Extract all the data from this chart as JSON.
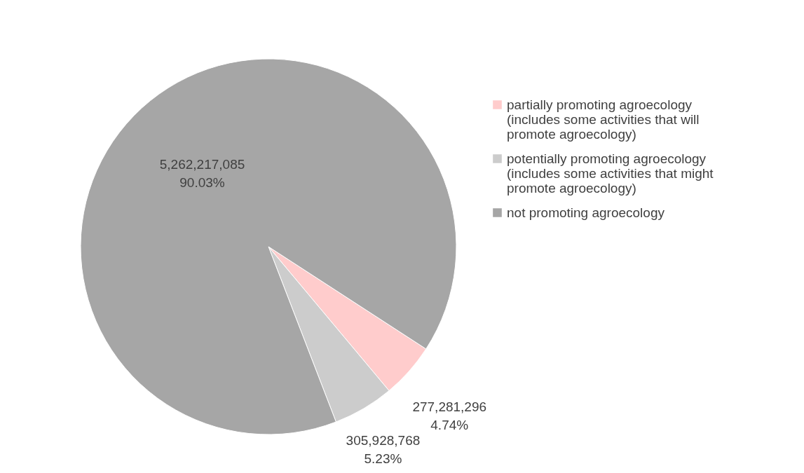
{
  "chart_data": {
    "type": "pie",
    "categories": [
      "partially promoting agroecology (includes some activities that will promote agroecology)",
      "potentially promoting agroecology (includes some activities that might promote agroecology)",
      "not promoting agroecology"
    ],
    "values": [
      277281296,
      305928768,
      5262217085
    ],
    "colors": [
      "#ffcccc",
      "#cccccc",
      "#a6a6a6"
    ],
    "value_labels": [
      "277,281,296\n4.74%",
      "305,928,768\n5.23%",
      "5,262,217,085\n90.03%"
    ],
    "legend": "right"
  }
}
